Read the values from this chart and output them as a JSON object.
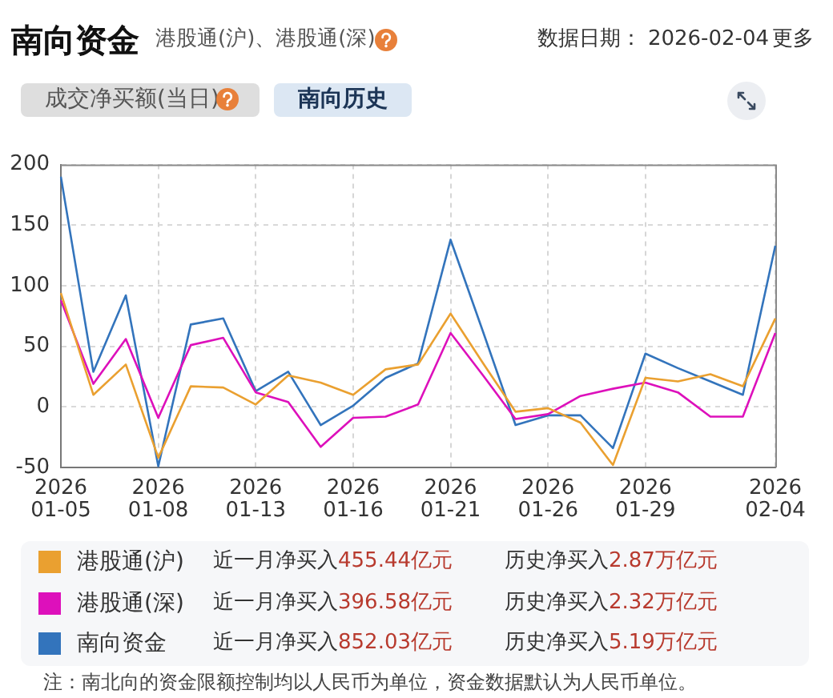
{
  "chart_data": {
    "type": "line",
    "title": "南向资金",
    "subtitle": "港股通(沪)、港股通(深)",
    "categories": [
      "2026\n01-05",
      null,
      null,
      "2026\n01-08",
      null,
      null,
      "2026\n01-13",
      null,
      null,
      "2026\n01-16",
      null,
      null,
      "2026\n01-21",
      null,
      null,
      "2026\n01-26",
      null,
      null,
      "2026\n01-29",
      null,
      null,
      null,
      "2026\n02-04"
    ],
    "series": [
      {
        "name": "港股通(沪)",
        "color": "#eaa030",
        "values": [
          94,
          10,
          35,
          -42,
          17,
          16,
          2,
          26,
          20,
          10,
          31,
          35,
          77,
          36,
          -4,
          -1,
          -13,
          -48,
          24,
          21,
          27,
          17,
          73
        ]
      },
      {
        "name": "港股通(深)",
        "color": "#dd10bb",
        "values": [
          88,
          19,
          56,
          -9,
          51,
          57,
          12,
          4,
          -33,
          -9,
          -8,
          2,
          61,
          26,
          -10,
          -6,
          9,
          15,
          20,
          12,
          -8,
          -8,
          61
        ]
      },
      {
        "name": "南向资金",
        "color": "#3374bc",
        "values": [
          190,
          29,
          92,
          -49,
          68,
          73,
          13,
          29,
          -15,
          1,
          24,
          36,
          138,
          62,
          -15,
          -7,
          -7,
          -34,
          44,
          32,
          21,
          10,
          133
        ]
      }
    ],
    "ylim": [
      -50,
      200
    ],
    "yticks": [
      -50,
      0,
      50,
      100,
      150,
      200
    ],
    "grid": true,
    "legend": "bottom",
    "marker": "none",
    "line_style": "solid",
    "annotations": [
      "数据日期： 2026-02-04",
      "更多",
      "成交净买额(当日)",
      "南向历史",
      "近一月净买入455.44亿元",
      "历史净买入2.87万亿元",
      "近一月净买入396.58亿元",
      "历史净买入2.32万亿元",
      "近一月净买入852.03亿元",
      "历史净买入5.19万亿元",
      "注：南北向的资金限额控制均以人民币为单位，资金数据默认为人民币单位。"
    ]
  }
}
